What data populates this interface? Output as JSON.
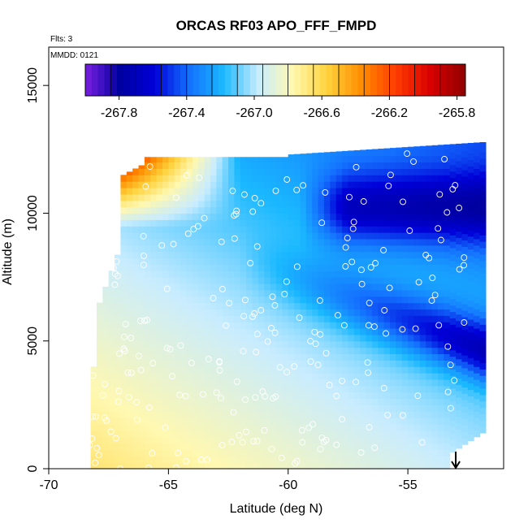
{
  "chart_data": {
    "type": "heatmap",
    "title": "ORCAS RF03 APO_FFF_FMPD",
    "annotation_flights": "Flts: 3",
    "annotation_date": "MMDD: 0121",
    "xlabel": "Latitude (deg N)",
    "ylabel": "Altitude (m)",
    "xlim": [
      -70,
      -51
    ],
    "ylim": [
      0,
      16500
    ],
    "x_ticks": [
      -70,
      -65,
      -60,
      -55
    ],
    "x_tick_labels": [
      "-70",
      "-65",
      "-60",
      "-55"
    ],
    "y_ticks": [
      0,
      5000,
      10000,
      15000
    ],
    "y_tick_labels": [
      "0",
      "5000",
      "10000",
      "15000"
    ],
    "colorbar": {
      "min": -268.0,
      "max": -265.75,
      "ticks": [
        -267.8,
        -267.4,
        -267.0,
        -266.6,
        -266.2,
        -265.8
      ],
      "tick_labels": [
        "-267.8",
        "-267.4",
        "-267.0",
        "-266.6",
        "-266.2",
        "-265.8"
      ],
      "palette": [
        "#7a1fe0",
        "#0000a0",
        "#0000d8",
        "#1470ff",
        "#1ab8ff",
        "#c8ecff",
        "#fff8b0",
        "#ffd23c",
        "#ff8c00",
        "#ff3a00",
        "#d80000",
        "#900000"
      ]
    },
    "marker_arrow_latitude": -53,
    "grid": false,
    "legend": "none"
  }
}
